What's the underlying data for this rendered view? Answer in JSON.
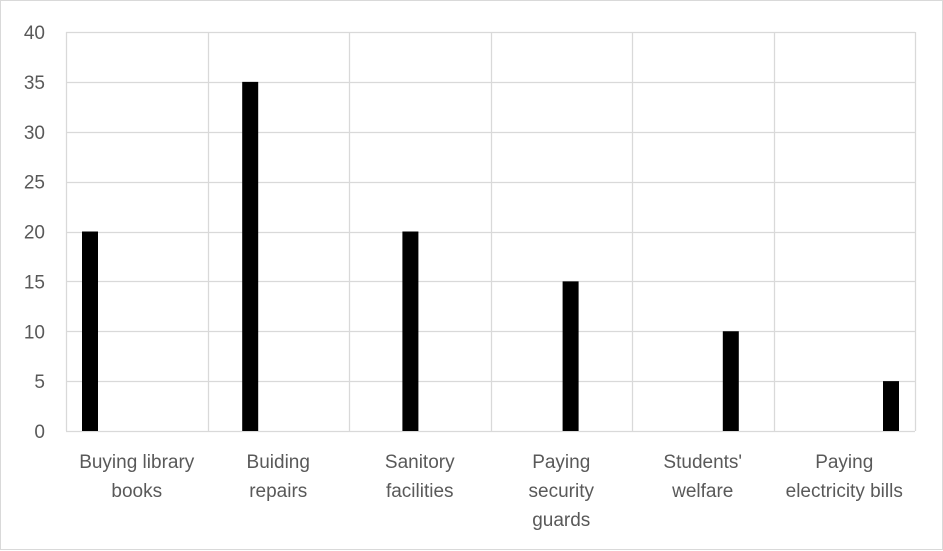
{
  "chart_data": {
    "type": "bar",
    "title": "",
    "xlabel": "",
    "ylabel": "",
    "categories": [
      [
        "Buying library",
        "books"
      ],
      [
        "Buiding",
        "repairs"
      ],
      [
        "Sanitory",
        "facilities"
      ],
      [
        "Paying",
        "security",
        "guards"
      ],
      [
        "Students'",
        "welfare"
      ],
      [
        "Paying",
        "electricity bills"
      ]
    ],
    "values": [
      20,
      35,
      20,
      15,
      10,
      5
    ],
    "ylim": [
      0,
      40
    ],
    "yticks": [
      0,
      5,
      10,
      15,
      20,
      25,
      30,
      35,
      40
    ],
    "grid": true,
    "legend": "none",
    "colors": {
      "bar": "#000000",
      "grid": "#d9d9d9",
      "text": "#595959",
      "border": "#d9d9d9"
    }
  }
}
